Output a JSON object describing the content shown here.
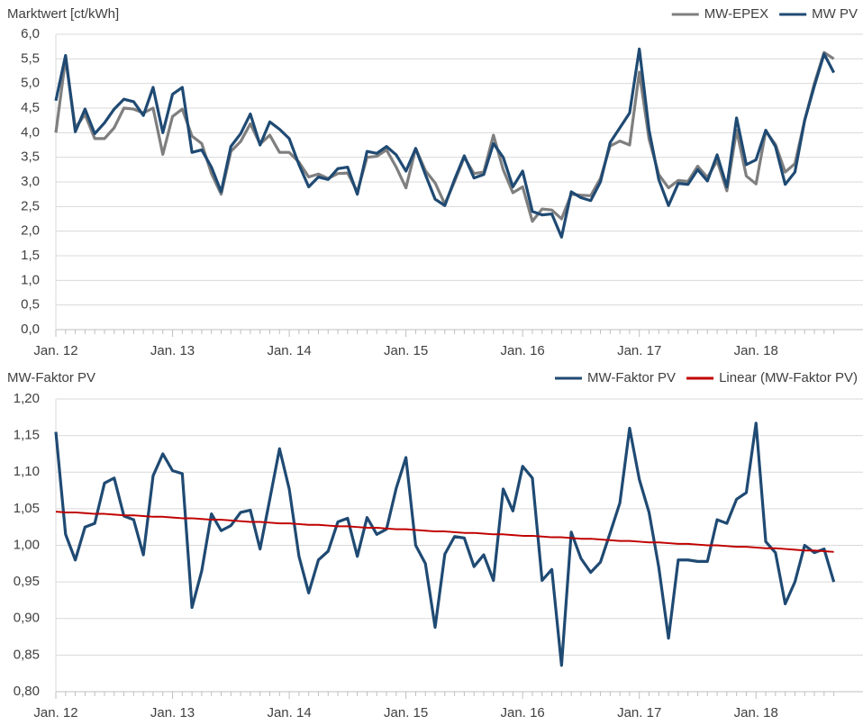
{
  "chart_data": [
    {
      "type": "line",
      "title": "Marktwert [ct/kWh]",
      "legend": "upper right",
      "grid": true,
      "categories": [
        "Jan. 12",
        null,
        null,
        null,
        null,
        null,
        null,
        null,
        null,
        null,
        null,
        null,
        "Jan. 13",
        null,
        null,
        null,
        null,
        null,
        null,
        null,
        null,
        null,
        null,
        null,
        "Jan. 14",
        null,
        null,
        null,
        null,
        null,
        null,
        null,
        null,
        null,
        null,
        null,
        "Jan. 15",
        null,
        null,
        null,
        null,
        null,
        null,
        null,
        null,
        null,
        null,
        null,
        "Jan. 16",
        null,
        null,
        null,
        null,
        null,
        null,
        null,
        null,
        null,
        null,
        null,
        "Jan. 17",
        null,
        null,
        null,
        null,
        null,
        null,
        null,
        null,
        null,
        null,
        null,
        "Jan. 18",
        null,
        null,
        null,
        null,
        null,
        null,
        null,
        null
      ],
      "ylim": [
        0,
        6
      ],
      "yticks": [
        {
          "value": 0,
          "label": "0,0"
        },
        {
          "value": 0.5,
          "label": "0,5"
        },
        {
          "value": 1,
          "label": "1,0"
        },
        {
          "value": 1.5,
          "label": "1,5"
        },
        {
          "value": 2,
          "label": "2,0"
        },
        {
          "value": 2.5,
          "label": "2,5"
        },
        {
          "value": 3,
          "label": "3,0"
        },
        {
          "value": 3.5,
          "label": "3,5"
        },
        {
          "value": 4,
          "label": "4,0"
        },
        {
          "value": 4.5,
          "label": "4,5"
        },
        {
          "value": 5,
          "label": "5,0"
        },
        {
          "value": 5.5,
          "label": "5,5"
        },
        {
          "value": 6,
          "label": "6,0"
        }
      ],
      "series": [
        {
          "name": "MW-EPEX",
          "color": "#7f7f7f",
          "values": [
            4.0,
            5.5,
            4.1,
            4.37,
            3.88,
            3.88,
            4.1,
            4.5,
            4.48,
            4.4,
            4.5,
            3.56,
            4.33,
            4.48,
            3.93,
            3.78,
            3.17,
            2.75,
            3.62,
            3.82,
            4.18,
            3.77,
            3.95,
            3.6,
            3.6,
            3.4,
            3.1,
            3.16,
            3.07,
            3.17,
            3.18,
            2.8,
            3.5,
            3.52,
            3.65,
            3.3,
            2.88,
            3.68,
            3.23,
            2.98,
            2.55,
            3.01,
            3.5,
            3.17,
            3.2,
            3.95,
            3.25,
            2.78,
            2.9,
            2.2,
            2.45,
            2.43,
            2.25,
            2.75,
            2.73,
            2.72,
            3.07,
            3.73,
            3.83,
            3.75,
            5.23,
            3.87,
            3.15,
            2.88,
            3.03,
            3.01,
            3.32,
            3.09,
            3.43,
            2.82,
            4.05,
            3.12,
            2.96,
            4.03,
            3.76,
            3.2,
            3.37,
            4.25,
            5.0,
            5.63,
            5.5
          ]
        },
        {
          "name": "MW PV",
          "color": "#1f4a73",
          "values": [
            4.65,
            5.57,
            4.02,
            4.48,
            3.98,
            4.2,
            4.48,
            4.68,
            4.63,
            4.35,
            4.92,
            4.0,
            4.78,
            4.92,
            3.6,
            3.65,
            3.3,
            2.8,
            3.72,
            3.98,
            4.38,
            3.75,
            4.22,
            4.07,
            3.88,
            3.35,
            2.9,
            3.1,
            3.05,
            3.27,
            3.3,
            2.75,
            3.62,
            3.58,
            3.72,
            3.55,
            3.22,
            3.68,
            3.15,
            2.65,
            2.52,
            3.05,
            3.53,
            3.08,
            3.15,
            3.78,
            3.5,
            2.9,
            3.22,
            2.4,
            2.33,
            2.35,
            1.88,
            2.8,
            2.68,
            2.62,
            3.0,
            3.8,
            4.1,
            4.4,
            5.7,
            4.05,
            3.05,
            2.52,
            2.97,
            2.95,
            3.25,
            3.02,
            3.55,
            2.9,
            4.3,
            3.35,
            3.45,
            4.05,
            3.72,
            2.95,
            3.2,
            4.25,
            4.95,
            5.6,
            5.22
          ]
        }
      ]
    },
    {
      "type": "line",
      "title": "MW-Faktor PV",
      "legend": "upper right",
      "grid": true,
      "categories": [
        "Jan. 12",
        null,
        null,
        null,
        null,
        null,
        null,
        null,
        null,
        null,
        null,
        null,
        "Jan. 13",
        null,
        null,
        null,
        null,
        null,
        null,
        null,
        null,
        null,
        null,
        null,
        "Jan. 14",
        null,
        null,
        null,
        null,
        null,
        null,
        null,
        null,
        null,
        null,
        null,
        "Jan. 15",
        null,
        null,
        null,
        null,
        null,
        null,
        null,
        null,
        null,
        null,
        null,
        "Jan. 16",
        null,
        null,
        null,
        null,
        null,
        null,
        null,
        null,
        null,
        null,
        null,
        "Jan. 17",
        null,
        null,
        null,
        null,
        null,
        null,
        null,
        null,
        null,
        null,
        null,
        "Jan. 18",
        null,
        null,
        null,
        null,
        null,
        null,
        null,
        null
      ],
      "ylim": [
        0.8,
        1.2
      ],
      "yticks": [
        {
          "value": 0.8,
          "label": "0,80"
        },
        {
          "value": 0.85,
          "label": "0,85"
        },
        {
          "value": 0.9,
          "label": "0,90"
        },
        {
          "value": 0.95,
          "label": "0,95"
        },
        {
          "value": 1,
          "label": "1,00"
        },
        {
          "value": 1.05,
          "label": "1,05"
        },
        {
          "value": 1.1,
          "label": "1,10"
        },
        {
          "value": 1.15,
          "label": "1,15"
        },
        {
          "value": 1.2,
          "label": "1,20"
        }
      ],
      "series": [
        {
          "name": "MW-Faktor PV",
          "color": "#1f4a73",
          "values": [
            1.155,
            1.015,
            0.98,
            1.025,
            1.03,
            1.085,
            1.092,
            1.04,
            1.035,
            0.987,
            1.095,
            1.125,
            1.102,
            1.098,
            0.915,
            0.965,
            1.043,
            1.02,
            1.027,
            1.045,
            1.048,
            0.995,
            1.063,
            1.132,
            1.077,
            0.985,
            0.935,
            0.98,
            0.992,
            1.032,
            1.037,
            0.985,
            1.038,
            1.015,
            1.022,
            1.078,
            1.12,
            1.0,
            0.975,
            0.888,
            0.988,
            1.012,
            1.01,
            0.971,
            0.987,
            0.952,
            1.077,
            1.047,
            1.108,
            1.092,
            0.952,
            0.967,
            0.836,
            1.018,
            0.982,
            0.963,
            0.977,
            1.017,
            1.058,
            1.16,
            1.09,
            1.045,
            0.97,
            0.873,
            0.98,
            0.98,
            0.978,
            0.978,
            1.035,
            1.03,
            1.063,
            1.072,
            1.167,
            1.005,
            0.99,
            0.92,
            0.95,
            1.0,
            0.99,
            0.995,
            0.95
          ]
        },
        {
          "name": "Linear (MW-Faktor PV)",
          "color": "#c00000",
          "values": [
            1.046,
            1.045,
            1.045,
            1.044,
            1.043,
            1.043,
            1.042,
            1.041,
            1.041,
            1.04,
            1.039,
            1.039,
            1.038,
            1.037,
            1.037,
            1.036,
            1.035,
            1.035,
            1.034,
            1.033,
            1.032,
            1.032,
            1.031,
            1.03,
            1.03,
            1.029,
            1.028,
            1.028,
            1.027,
            1.026,
            1.026,
            1.025,
            1.024,
            1.024,
            1.023,
            1.022,
            1.022,
            1.021,
            1.02,
            1.019,
            1.019,
            1.018,
            1.017,
            1.017,
            1.016,
            1.015,
            1.015,
            1.014,
            1.013,
            1.013,
            1.012,
            1.011,
            1.011,
            1.01,
            1.009,
            1.009,
            1.008,
            1.007,
            1.006,
            1.006,
            1.005,
            1.004,
            1.004,
            1.003,
            1.002,
            1.002,
            1.001,
            1.0,
            1.0,
            0.999,
            0.998,
            0.998,
            0.997,
            0.996,
            0.996,
            0.995,
            0.994,
            0.993,
            0.993,
            0.992,
            0.991
          ]
        }
      ]
    }
  ]
}
